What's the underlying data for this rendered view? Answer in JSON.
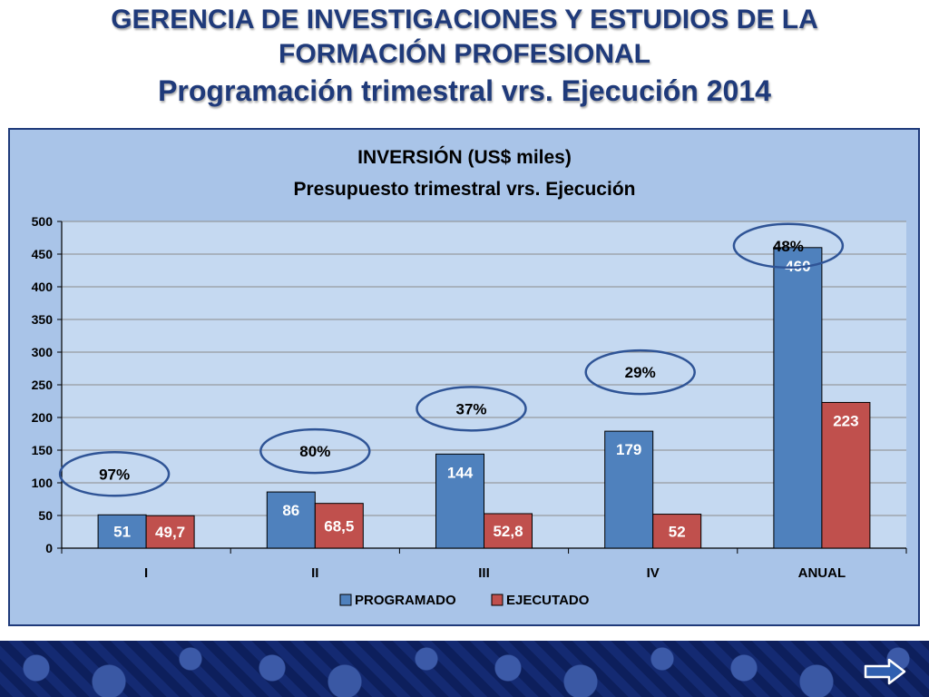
{
  "header": {
    "line1": "GERENCIA DE INVESTIGACIONES Y ESTUDIOS DE LA",
    "line2": "FORMACIÓN PROFESIONAL",
    "line3": "Programación trimestral vrs. Ejecución 2014"
  },
  "colors": {
    "programado": "#4f81bd",
    "ejecutado": "#c0504d",
    "frame_bg": "#a9c4e8",
    "plot_bg": "#c5d9f1",
    "ellipse": "#2f5496",
    "title_text": "#1f3a7a"
  },
  "chart_data": {
    "type": "bar",
    "title": "INVERSIÓN (US$ miles)",
    "subtitle": "Presupuesto trimestral vrs. Ejecución",
    "categories": [
      "I",
      "II",
      "III",
      "IV",
      "ANUAL"
    ],
    "series": [
      {
        "name": "PROGRAMADO",
        "values": [
          51,
          86,
          144,
          179,
          460
        ],
        "labels": [
          "51",
          "86",
          "144",
          "179",
          "460"
        ]
      },
      {
        "name": "EJECUTADO",
        "values": [
          49.7,
          68.5,
          52.8,
          52,
          223
        ],
        "labels": [
          "49,7",
          "68,5",
          "52,8",
          "52",
          "223"
        ]
      }
    ],
    "percentages": [
      "97%",
      "80%",
      "37%",
      "29%",
      "48%"
    ],
    "ylim": [
      0,
      500
    ],
    "yticks": [
      0,
      50,
      100,
      150,
      200,
      250,
      300,
      350,
      400,
      450,
      500
    ],
    "grid": true,
    "legend": "bottom"
  },
  "nav": {
    "next_icon": "right-arrow-icon"
  }
}
